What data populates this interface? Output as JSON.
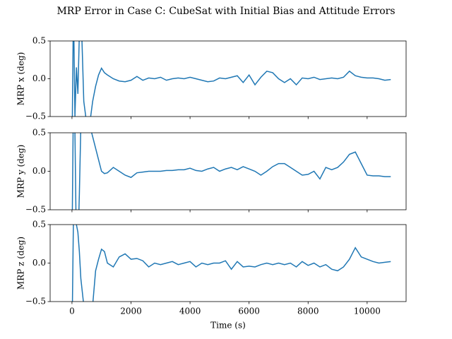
{
  "title": "MRP Error in Case C: CubeSat with Initial Bias and Attitude Errors",
  "chart_data": [
    {
      "type": "line",
      "ylabel": "MRP x (deg)",
      "x": [
        0,
        50,
        100,
        150,
        200,
        250,
        300,
        400,
        500,
        600,
        700,
        800,
        900,
        1000,
        1100,
        1200,
        1400,
        1600,
        1800,
        2000,
        2200,
        2400,
        2600,
        2800,
        3000,
        3200,
        3400,
        3600,
        3800,
        4000,
        4200,
        4400,
        4600,
        4800,
        5000,
        5200,
        5400,
        5600,
        5800,
        6000,
        6200,
        6400,
        6600,
        6800,
        7000,
        7200,
        7400,
        7600,
        7800,
        8000,
        8200,
        8400,
        8600,
        8800,
        9000,
        9200,
        9400,
        9600,
        9800,
        10000,
        10200,
        10400,
        10600,
        10800
      ],
      "series": [
        {
          "color": "#1f77b4",
          "values": [
            -1.0,
            1.0,
            -0.5,
            0.15,
            -0.2,
            0.6,
            1.0,
            -0.3,
            -0.6,
            -0.6,
            -0.3,
            -0.1,
            0.05,
            0.14,
            0.08,
            0.05,
            0.0,
            -0.03,
            -0.04,
            -0.02,
            0.03,
            -0.02,
            0.01,
            0.0,
            0.02,
            -0.02,
            0.0,
            0.01,
            0.0,
            0.02,
            0.0,
            -0.02,
            -0.04,
            -0.03,
            0.01,
            0.0,
            0.02,
            0.04,
            -0.05,
            0.05,
            -0.08,
            0.02,
            0.1,
            0.08,
            0.0,
            -0.05,
            0.0,
            -0.08,
            0.01,
            0.0,
            0.02,
            -0.01,
            0.0,
            0.01,
            0.0,
            0.02,
            0.1,
            0.04,
            0.02,
            0.01,
            0.01,
            0.0,
            -0.02,
            -0.01
          ]
        }
      ],
      "xlim": [
        -740,
        11320
      ],
      "xticks": [
        0,
        2000,
        4000,
        6000,
        8000,
        10000
      ],
      "ylim": [
        -0.5,
        0.5
      ],
      "yticks": [
        {
          "value": -0.5,
          "label": "−0.5"
        },
        {
          "value": 0,
          "label": "0.0"
        },
        {
          "value": 0.5,
          "label": "0.5"
        }
      ]
    },
    {
      "type": "line",
      "ylabel": "MRP y (deg)",
      "x": [
        0,
        50,
        100,
        150,
        200,
        250,
        300,
        400,
        500,
        600,
        700,
        800,
        900,
        1000,
        1100,
        1200,
        1400,
        1600,
        1800,
        2000,
        2200,
        2400,
        2600,
        2800,
        3000,
        3200,
        3400,
        3600,
        3800,
        4000,
        4200,
        4400,
        4600,
        4800,
        5000,
        5200,
        5400,
        5600,
        5800,
        6000,
        6200,
        6400,
        6600,
        6800,
        7000,
        7200,
        7400,
        7600,
        7800,
        8000,
        8200,
        8400,
        8600,
        8800,
        9000,
        9200,
        9400,
        9600,
        9800,
        10000,
        10200,
        10400,
        10600,
        10800
      ],
      "series": [
        {
          "color": "#1f77b4",
          "values": [
            -1.0,
            1.0,
            0.5,
            -1.0,
            -1.0,
            -0.3,
            0.6,
            1.0,
            1.0,
            0.6,
            0.45,
            0.3,
            0.15,
            0.0,
            -0.03,
            -0.02,
            0.05,
            0.0,
            -0.05,
            -0.08,
            -0.02,
            -0.01,
            0.0,
            0.0,
            0.0,
            0.01,
            0.01,
            0.02,
            0.02,
            0.04,
            0.01,
            0.0,
            0.03,
            0.05,
            0.0,
            0.03,
            0.05,
            0.02,
            0.06,
            0.03,
            0.0,
            -0.05,
            0.0,
            0.06,
            0.1,
            0.1,
            0.05,
            0.0,
            -0.05,
            -0.04,
            0.0,
            -0.1,
            0.05,
            0.02,
            0.05,
            0.12,
            0.22,
            0.25,
            0.1,
            -0.05,
            -0.06,
            -0.06,
            -0.07,
            -0.07
          ]
        }
      ],
      "xlim": [
        -740,
        11320
      ],
      "xticks": [
        0,
        2000,
        4000,
        6000,
        8000,
        10000
      ],
      "ylim": [
        -0.5,
        0.5
      ],
      "yticks": [
        {
          "value": -0.5,
          "label": "−0.5"
        },
        {
          "value": 0,
          "label": "0.0"
        },
        {
          "value": 0.5,
          "label": "0.5"
        }
      ]
    },
    {
      "type": "line",
      "ylabel": "MRP z (deg)",
      "xlabel": "Time (s)",
      "x": [
        0,
        50,
        100,
        150,
        200,
        250,
        300,
        400,
        500,
        600,
        700,
        800,
        900,
        1000,
        1100,
        1200,
        1400,
        1600,
        1800,
        2000,
        2200,
        2400,
        2600,
        2800,
        3000,
        3200,
        3400,
        3600,
        3800,
        4000,
        4200,
        4400,
        4600,
        4800,
        5000,
        5200,
        5400,
        5600,
        5800,
        6000,
        6200,
        6400,
        6600,
        6800,
        7000,
        7200,
        7400,
        7600,
        7800,
        8000,
        8200,
        8400,
        8600,
        8800,
        9000,
        9200,
        9400,
        9600,
        9800,
        10000,
        10200,
        10400,
        10600,
        10800
      ],
      "series": [
        {
          "color": "#1f77b4",
          "values": [
            -1.0,
            0.6,
            0.55,
            0.5,
            0.4,
            0.15,
            -0.2,
            -0.55,
            -0.7,
            -0.9,
            -0.55,
            -0.1,
            0.05,
            0.18,
            0.15,
            0.0,
            -0.05,
            0.08,
            0.12,
            0.05,
            0.06,
            0.03,
            -0.05,
            0.0,
            -0.02,
            0.0,
            0.02,
            -0.02,
            0.0,
            0.02,
            -0.05,
            0.0,
            -0.02,
            0.0,
            0.0,
            0.03,
            -0.08,
            0.02,
            -0.05,
            -0.04,
            -0.05,
            -0.02,
            0.0,
            -0.02,
            0.0,
            -0.02,
            0.0,
            -0.05,
            0.02,
            -0.03,
            0.0,
            -0.05,
            -0.02,
            -0.08,
            -0.1,
            -0.05,
            0.05,
            0.2,
            0.08,
            0.05,
            0.02,
            0.0,
            0.01,
            0.02
          ]
        }
      ],
      "xlim": [
        -740,
        11320
      ],
      "xticks": [
        0,
        2000,
        4000,
        6000,
        8000,
        10000
      ],
      "xticklabels": true,
      "ylim": [
        -0.5,
        0.5
      ],
      "yticks": [
        {
          "value": -0.5,
          "label": "−0.5"
        },
        {
          "value": 0,
          "label": "0.0"
        },
        {
          "value": 0.5,
          "label": "0.5"
        }
      ]
    }
  ]
}
